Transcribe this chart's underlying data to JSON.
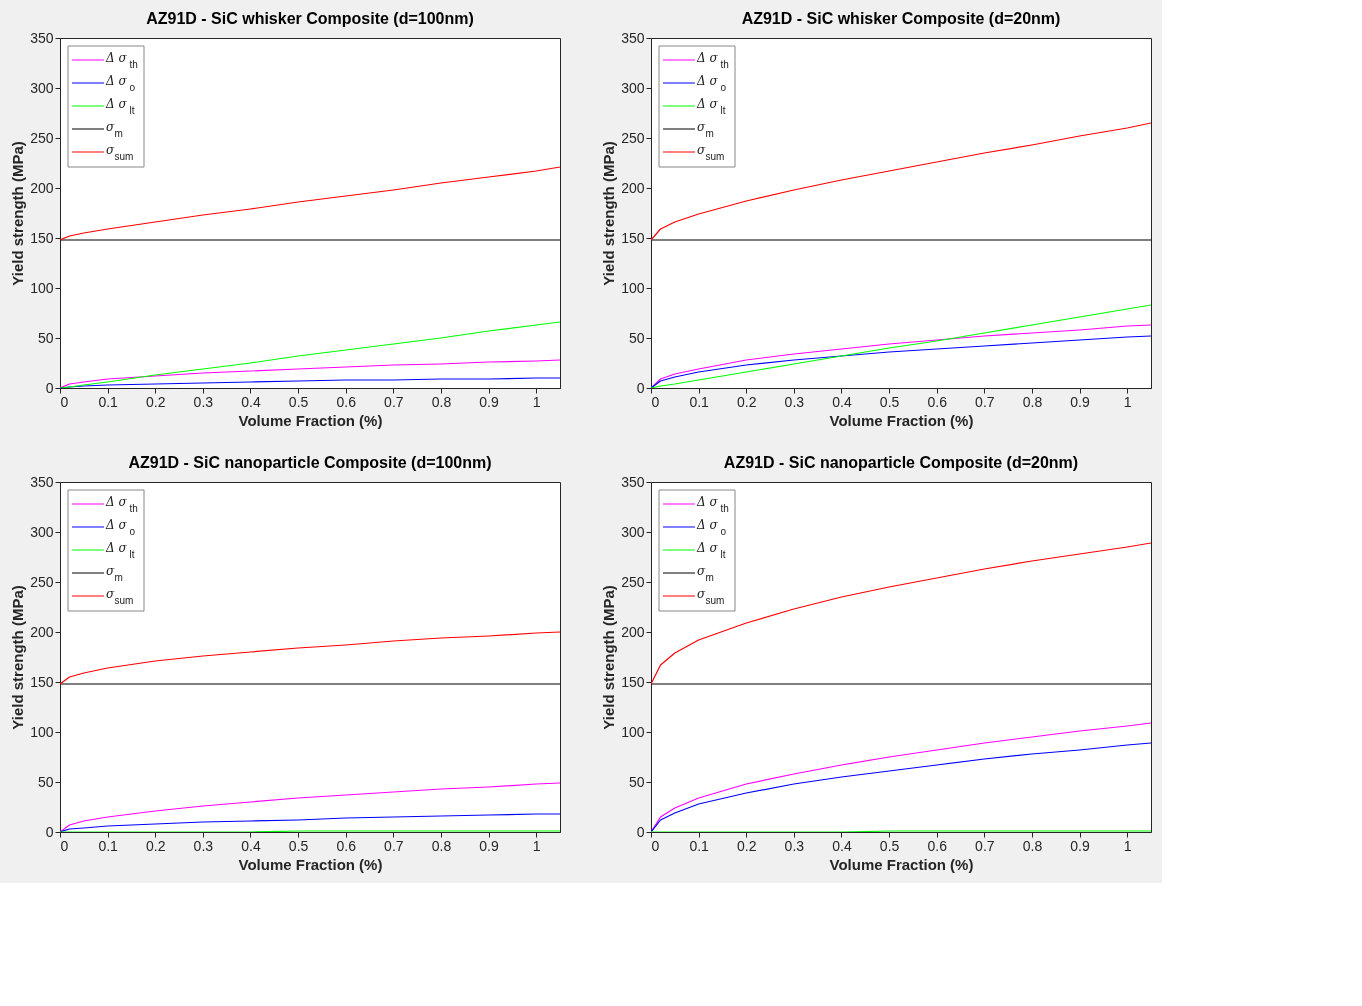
{
  "chart_data": [
    {
      "type": "line",
      "title": "AZ91D - SiC whisker Composite (d=100nm)",
      "xlabel": "Volume Fraction (%)",
      "ylabel": "Yield strength (MPa)",
      "legend": "top left",
      "grid": false,
      "line_style": "solid",
      "marker": "none",
      "xlim": [
        0,
        1.05
      ],
      "ylim": [
        0,
        350
      ],
      "xticks": [
        0,
        0.1,
        0.2,
        0.3,
        0.4,
        0.5,
        0.6,
        0.7,
        0.8,
        0.9,
        1
      ],
      "yticks": [
        0,
        50,
        100,
        150,
        200,
        250,
        300,
        350
      ],
      "x": [
        0,
        0.02,
        0.05,
        0.1,
        0.2,
        0.3,
        0.4,
        0.5,
        0.6,
        0.7,
        0.8,
        0.9,
        1.0,
        1.05
      ],
      "series": [
        {
          "name": "Δ σ$_{th}$",
          "color": "#ff00ff",
          "values": [
            0,
            4,
            6,
            9,
            12,
            15,
            17,
            19,
            21,
            23,
            24,
            26,
            27,
            28
          ]
        },
        {
          "name": "Δ σ$_{o}$",
          "color": "#0000ff",
          "values": [
            0,
            1,
            2,
            3,
            4,
            5,
            6,
            7,
            8,
            8,
            9,
            9,
            10,
            10
          ]
        },
        {
          "name": "Δ σ$_{lt}$",
          "color": "#00ff00",
          "values": [
            0,
            1,
            3,
            6,
            13,
            19,
            25,
            32,
            38,
            44,
            50,
            57,
            63,
            66
          ]
        },
        {
          "name": "σ$_{m}$",
          "color": "#000000",
          "values": [
            148,
            148,
            148,
            148,
            148,
            148,
            148,
            148,
            148,
            148,
            148,
            148,
            148,
            148
          ]
        },
        {
          "name": "σ$_{sum}$",
          "color": "#ff0000",
          "values": [
            148,
            152,
            155,
            159,
            166,
            173,
            179,
            186,
            192,
            198,
            205,
            211,
            217,
            221
          ]
        }
      ]
    },
    {
      "type": "line",
      "title": "AZ91D - SiC whisker Composite (d=20nm)",
      "xlabel": "Volume Fraction (%)",
      "ylabel": "Yield strength (MPa)",
      "legend": "top left",
      "grid": false,
      "line_style": "solid",
      "marker": "none",
      "xlim": [
        0,
        1.05
      ],
      "ylim": [
        0,
        350
      ],
      "xticks": [
        0,
        0.1,
        0.2,
        0.3,
        0.4,
        0.5,
        0.6,
        0.7,
        0.8,
        0.9,
        1
      ],
      "yticks": [
        0,
        50,
        100,
        150,
        200,
        250,
        300,
        350
      ],
      "x": [
        0,
        0.02,
        0.05,
        0.1,
        0.2,
        0.3,
        0.4,
        0.5,
        0.6,
        0.7,
        0.8,
        0.9,
        1.0,
        1.05
      ],
      "series": [
        {
          "name": "Δ σ$_{th}$",
          "color": "#ff00ff",
          "values": [
            0,
            9,
            14,
            19,
            28,
            34,
            39,
            44,
            48,
            52,
            55,
            58,
            62,
            63
          ]
        },
        {
          "name": "Δ σ$_{o}$",
          "color": "#0000ff",
          "values": [
            0,
            7,
            11,
            16,
            23,
            28,
            32,
            36,
            39,
            42,
            45,
            48,
            51,
            52
          ]
        },
        {
          "name": "Δ σ$_{lt}$",
          "color": "#00ff00",
          "values": [
            0,
            2,
            4,
            8,
            16,
            24,
            32,
            40,
            47,
            55,
            63,
            71,
            79,
            83
          ]
        },
        {
          "name": "σ$_{m}$",
          "color": "#000000",
          "values": [
            148,
            148,
            148,
            148,
            148,
            148,
            148,
            148,
            148,
            148,
            148,
            148,
            148,
            148
          ]
        },
        {
          "name": "σ$_{sum}$",
          "color": "#ff0000",
          "values": [
            148,
            159,
            166,
            174,
            187,
            198,
            208,
            217,
            226,
            235,
            243,
            252,
            260,
            265
          ]
        }
      ]
    },
    {
      "type": "line",
      "title": "AZ91D - SiC nanoparticle Composite (d=100nm)",
      "xlabel": "Volume Fraction (%)",
      "ylabel": "Yield strength (MPa)",
      "legend": "top left",
      "grid": false,
      "line_style": "solid",
      "marker": "none",
      "xlim": [
        0,
        1.05
      ],
      "ylim": [
        0,
        350
      ],
      "xticks": [
        0,
        0.1,
        0.2,
        0.3,
        0.4,
        0.5,
        0.6,
        0.7,
        0.8,
        0.9,
        1
      ],
      "yticks": [
        0,
        50,
        100,
        150,
        200,
        250,
        300,
        350
      ],
      "x": [
        0,
        0.02,
        0.05,
        0.1,
        0.2,
        0.3,
        0.4,
        0.5,
        0.6,
        0.7,
        0.8,
        0.9,
        1.0,
        1.05
      ],
      "series": [
        {
          "name": "Δ σ$_{th}$",
          "color": "#ff00ff",
          "values": [
            0,
            7,
            11,
            15,
            21,
            26,
            30,
            34,
            37,
            40,
            43,
            45,
            48,
            49
          ]
        },
        {
          "name": "Δ σ$_{o}$",
          "color": "#0000ff",
          "values": [
            0,
            3,
            4,
            6,
            8,
            10,
            11,
            12,
            14,
            15,
            16,
            17,
            18,
            18
          ]
        },
        {
          "name": "Δ σ$_{lt}$",
          "color": "#00ff00",
          "values": [
            0,
            0,
            0,
            0,
            0,
            0,
            0,
            1,
            1,
            1,
            1,
            1,
            1,
            1
          ]
        },
        {
          "name": "σ$_{m}$",
          "color": "#000000",
          "values": [
            148,
            148,
            148,
            148,
            148,
            148,
            148,
            148,
            148,
            148,
            148,
            148,
            148,
            148
          ]
        },
        {
          "name": "σ$_{sum}$",
          "color": "#ff0000",
          "values": [
            148,
            155,
            159,
            164,
            171,
            176,
            180,
            184,
            187,
            191,
            194,
            196,
            199,
            200
          ]
        }
      ]
    },
    {
      "type": "line",
      "title": "AZ91D - SiC nanoparticle Composite (d=20nm)",
      "xlabel": "Volume Fraction (%)",
      "ylabel": "Yield strength (MPa)",
      "legend": "top left",
      "grid": false,
      "line_style": "solid",
      "marker": "none",
      "xlim": [
        0,
        1.05
      ],
      "ylim": [
        0,
        350
      ],
      "xticks": [
        0,
        0.1,
        0.2,
        0.3,
        0.4,
        0.5,
        0.6,
        0.7,
        0.8,
        0.9,
        1
      ],
      "yticks": [
        0,
        50,
        100,
        150,
        200,
        250,
        300,
        350
      ],
      "x": [
        0,
        0.02,
        0.05,
        0.1,
        0.2,
        0.3,
        0.4,
        0.5,
        0.6,
        0.7,
        0.8,
        0.9,
        1.0,
        1.05
      ],
      "series": [
        {
          "name": "Δ σ$_{th}$",
          "color": "#ff00ff",
          "values": [
            0,
            15,
            24,
            34,
            48,
            58,
            67,
            75,
            82,
            89,
            95,
            101,
            106,
            109
          ]
        },
        {
          "name": "Δ σ$_{o}$",
          "color": "#0000ff",
          "values": [
            0,
            12,
            19,
            28,
            39,
            48,
            55,
            61,
            67,
            73,
            78,
            82,
            87,
            89
          ]
        },
        {
          "name": "Δ σ$_{lt}$",
          "color": "#00ff00",
          "values": [
            0,
            0,
            0,
            0,
            0,
            0,
            0,
            1,
            1,
            1,
            1,
            1,
            1,
            1
          ]
        },
        {
          "name": "σ$_{m}$",
          "color": "#000000",
          "values": [
            148,
            148,
            148,
            148,
            148,
            148,
            148,
            148,
            148,
            148,
            148,
            148,
            148,
            148
          ]
        },
        {
          "name": "σ$_{sum}$",
          "color": "#ff0000",
          "values": [
            148,
            167,
            179,
            192,
            209,
            223,
            235,
            245,
            254,
            263,
            271,
            278,
            285,
            289
          ]
        }
      ]
    }
  ]
}
